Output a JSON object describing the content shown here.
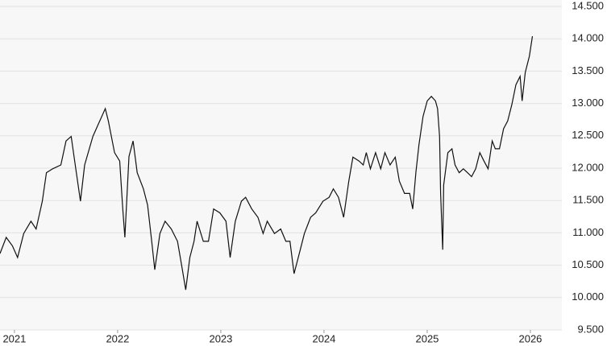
{
  "chart_data": {
    "type": "line",
    "x": [
      2020.86,
      2020.92,
      2020.98,
      2021.03,
      2021.09,
      2021.16,
      2021.21,
      2021.27,
      2021.31,
      2021.37,
      2021.45,
      2021.5,
      2021.55,
      2021.6,
      2021.64,
      2021.68,
      2021.76,
      2021.81,
      2021.88,
      2021.91,
      2021.97,
      2022.02,
      2022.05,
      2022.07,
      2022.11,
      2022.15,
      2022.19,
      2022.25,
      2022.29,
      2022.33,
      2022.36,
      2022.41,
      2022.46,
      2022.52,
      2022.58,
      2022.62,
      2022.66,
      2022.7,
      2022.74,
      2022.77,
      2022.83,
      2022.88,
      2022.93,
      2022.99,
      2023.05,
      2023.09,
      2023.14,
      2023.2,
      2023.24,
      2023.3,
      2023.36,
      2023.41,
      2023.45,
      2023.52,
      2023.58,
      2023.63,
      2023.67,
      2023.71,
      2023.77,
      2023.81,
      2023.87,
      2023.92,
      2023.99,
      2024.05,
      2024.09,
      2024.14,
      2024.19,
      2024.24,
      2024.28,
      2024.34,
      2024.38,
      2024.41,
      2024.45,
      2024.5,
      2024.55,
      2024.59,
      2024.64,
      2024.69,
      2024.73,
      2024.78,
      2024.83,
      2024.86,
      2024.89,
      2024.92,
      2024.96,
      2025.0,
      2025.04,
      2025.08,
      2025.1,
      2025.12,
      2025.13,
      2025.15,
      2025.16,
      2025.2,
      2025.24,
      2025.27,
      2025.31,
      2025.35,
      2025.39,
      2025.43,
      2025.47,
      2025.51,
      2025.55,
      2025.59,
      2025.63,
      2025.66,
      2025.7,
      2025.74,
      2025.78,
      2025.82,
      2025.86,
      2025.9,
      2025.92,
      2025.95,
      2025.99,
      2026.02
    ],
    "series": [
      {
        "color": "#111111",
        "values": [
          10680,
          10930,
          10800,
          10620,
          10990,
          11180,
          11060,
          11490,
          11930,
          11990,
          12050,
          12420,
          12490,
          11930,
          11490,
          12050,
          12490,
          12670,
          12920,
          12730,
          12240,
          12110,
          11370,
          10930,
          12180,
          12420,
          11930,
          11680,
          11430,
          10870,
          10430,
          10990,
          11180,
          11060,
          10870,
          10500,
          10120,
          10620,
          10870,
          11180,
          10870,
          10870,
          11370,
          11310,
          11180,
          10620,
          11180,
          11490,
          11550,
          11370,
          11240,
          10990,
          11180,
          10990,
          11060,
          10870,
          10870,
          10370,
          10740,
          10990,
          11240,
          11310,
          11490,
          11550,
          11680,
          11550,
          11240,
          11800,
          12170,
          12110,
          12050,
          12240,
          11990,
          12240,
          11990,
          12240,
          12050,
          12170,
          11800,
          11610,
          11610,
          11370,
          11930,
          12360,
          12800,
          13040,
          13110,
          13040,
          12920,
          12490,
          11610,
          10740,
          11740,
          12240,
          12300,
          12050,
          11930,
          11990,
          11930,
          11870,
          11990,
          12240,
          12110,
          11990,
          12420,
          12300,
          12300,
          12610,
          12730,
          12980,
          13290,
          13420,
          13040,
          13480,
          13730,
          14040
        ]
      }
    ],
    "xlim": [
      2020.86,
      2026.305
    ],
    "xticks": [
      2021,
      2022,
      2023,
      2024,
      2025,
      2026
    ],
    "ylim": [
      9500,
      14500
    ],
    "yticks": [
      {
        "value": 9500,
        "label": "9.500"
      },
      {
        "value": 10000,
        "label": "10.000"
      },
      {
        "value": 10500,
        "label": "10.500"
      },
      {
        "value": 11000,
        "label": "11.000"
      },
      {
        "value": 11500,
        "label": "11.500"
      },
      {
        "value": 12000,
        "label": "12.000"
      },
      {
        "value": 12500,
        "label": "12.500"
      },
      {
        "value": 13000,
        "label": "13.000"
      },
      {
        "value": 13500,
        "label": "13.500"
      },
      {
        "value": 14000,
        "label": "14.000"
      },
      {
        "value": 14500,
        "label": "14.500"
      }
    ],
    "grid": true
  }
}
